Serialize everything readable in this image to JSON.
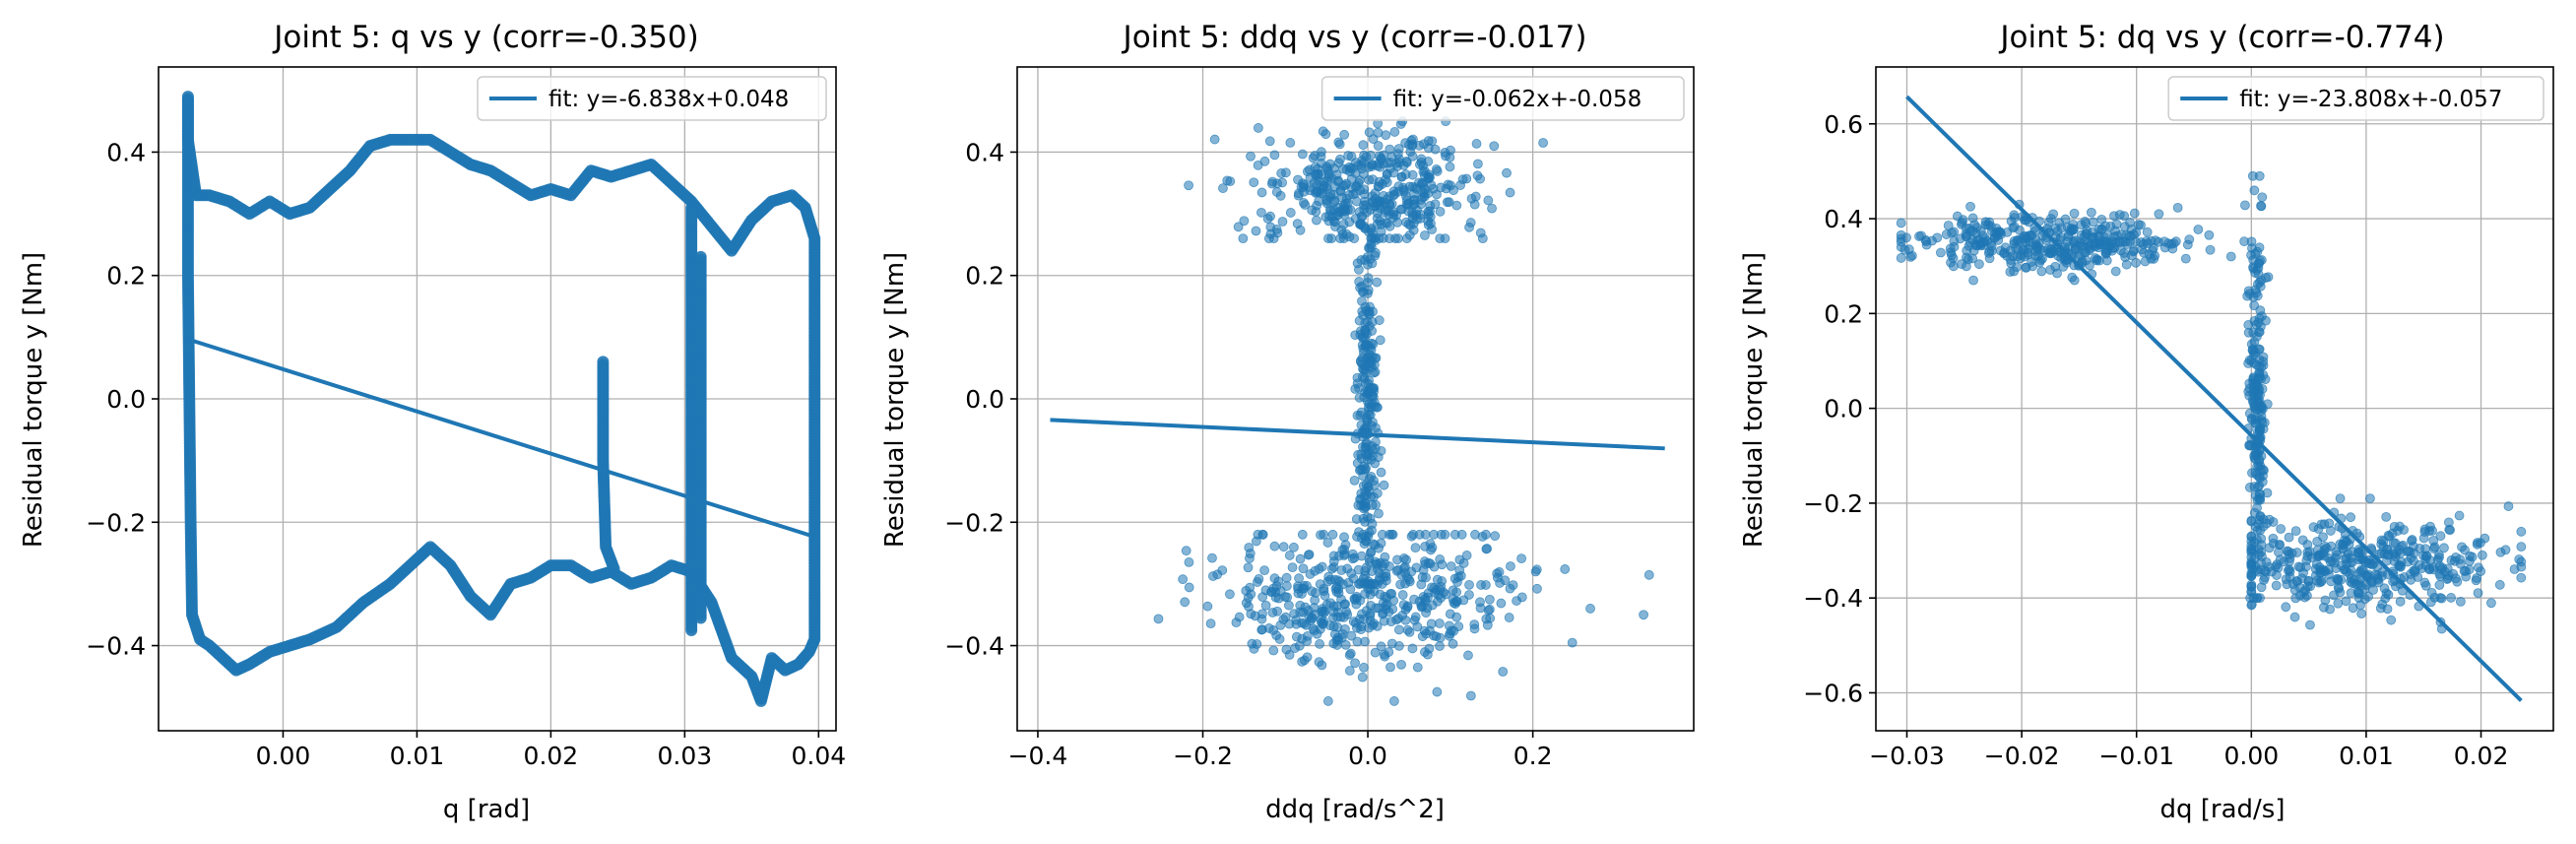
{
  "colors": {
    "series": "#1f77b4",
    "grid": "#b0b0b0",
    "axes": "#000000",
    "legend_edge": "#cccccc"
  },
  "chart_data": [
    {
      "type": "scatter",
      "title": "Joint 5: q vs y (corr=-0.350)",
      "xlabel": "q [rad]",
      "ylabel": "Residual torque y [Nm]",
      "xlim": [
        -0.0093,
        0.0413
      ],
      "ylim": [
        -0.538,
        0.538
      ],
      "xticks": [
        0.0,
        0.01,
        0.02,
        0.03,
        0.04
      ],
      "xtick_labels": [
        "0.00",
        "0.01",
        "0.02",
        "0.03",
        "0.04"
      ],
      "yticks": [
        -0.4,
        -0.2,
        0.0,
        0.2,
        0.4
      ],
      "ytick_labels": [
        "−0.4",
        "−0.2",
        "0.0",
        "0.2",
        "0.4"
      ],
      "grid": true,
      "legend": {
        "location": "upper right",
        "entries": [
          "fit: y=-6.838x+0.048"
        ]
      },
      "point_style": {
        "radius": 6,
        "opacity": 0.9
      },
      "fit": {
        "slope": -6.838,
        "intercept": 0.048,
        "x_range": [
          -0.0071,
          0.0397
        ]
      },
      "series": [
        {
          "kind": "path",
          "points": [
            [
              -0.0071,
              0.49
            ],
            [
              -0.0071,
              0.2
            ],
            [
              -0.007,
              -0.0
            ],
            [
              -0.0069,
              -0.2
            ],
            [
              -0.0068,
              -0.35
            ],
            [
              -0.0062,
              -0.39
            ],
            [
              -0.0055,
              -0.4
            ],
            [
              -0.0045,
              -0.42
            ],
            [
              -0.0035,
              -0.44
            ],
            [
              -0.0025,
              -0.43
            ],
            [
              -0.001,
              -0.41
            ],
            [
              0.0005,
              -0.4
            ],
            [
              0.002,
              -0.39
            ],
            [
              0.004,
              -0.37
            ],
            [
              0.006,
              -0.33
            ],
            [
              0.008,
              -0.3
            ],
            [
              0.0095,
              -0.27
            ],
            [
              0.011,
              -0.24
            ],
            [
              0.0125,
              -0.27
            ],
            [
              0.014,
              -0.32
            ],
            [
              0.0155,
              -0.35
            ],
            [
              0.017,
              -0.3
            ],
            [
              0.0185,
              -0.29
            ],
            [
              0.02,
              -0.27
            ],
            [
              0.0215,
              -0.27
            ],
            [
              0.023,
              -0.29
            ],
            [
              0.0245,
              -0.28
            ],
            [
              0.026,
              -0.3
            ],
            [
              0.0275,
              -0.29
            ],
            [
              0.029,
              -0.27
            ],
            [
              0.0305,
              -0.28
            ],
            [
              0.032,
              -0.33
            ],
            [
              0.0335,
              -0.42
            ],
            [
              0.035,
              -0.45
            ],
            [
              0.0357,
              -0.49
            ],
            [
              0.0365,
              -0.42
            ],
            [
              0.0375,
              -0.44
            ],
            [
              0.0385,
              -0.43
            ],
            [
              0.0393,
              -0.41
            ],
            [
              0.0397,
              -0.39
            ],
            [
              0.0397,
              -0.2
            ],
            [
              0.0397,
              0.0
            ],
            [
              0.0397,
              0.26
            ],
            [
              0.039,
              0.31
            ],
            [
              0.038,
              0.33
            ],
            [
              0.0365,
              0.32
            ],
            [
              0.035,
              0.29
            ],
            [
              0.0335,
              0.24
            ],
            [
              0.032,
              0.28
            ],
            [
              0.0305,
              0.32
            ],
            [
              0.029,
              0.35
            ],
            [
              0.0275,
              0.38
            ],
            [
              0.026,
              0.37
            ],
            [
              0.0245,
              0.36
            ],
            [
              0.023,
              0.37
            ],
            [
              0.0215,
              0.33
            ],
            [
              0.02,
              0.34
            ],
            [
              0.0185,
              0.33
            ],
            [
              0.017,
              0.35
            ],
            [
              0.0155,
              0.37
            ],
            [
              0.014,
              0.38
            ],
            [
              0.0125,
              0.4
            ],
            [
              0.011,
              0.42
            ],
            [
              0.0095,
              0.42
            ],
            [
              0.008,
              0.42
            ],
            [
              0.0065,
              0.41
            ],
            [
              0.005,
              0.37
            ],
            [
              0.0035,
              0.34
            ],
            [
              0.002,
              0.31
            ],
            [
              0.0005,
              0.3
            ],
            [
              -0.001,
              0.32
            ],
            [
              -0.0025,
              0.3
            ],
            [
              -0.004,
              0.32
            ],
            [
              -0.0055,
              0.33
            ],
            [
              -0.0065,
              0.33
            ],
            [
              -0.0071,
              0.42
            ],
            [
              -0.0071,
              0.49
            ]
          ]
        },
        {
          "kind": "path",
          "points": [
            [
              0.0305,
              0.31
            ],
            [
              0.0305,
              0.0
            ],
            [
              0.0305,
              -0.38
            ]
          ]
        },
        {
          "kind": "path",
          "points": [
            [
              0.0312,
              0.23
            ],
            [
              0.0312,
              0.0
            ],
            [
              0.0312,
              -0.36
            ]
          ]
        },
        {
          "kind": "path",
          "points": [
            [
              0.0239,
              0.06
            ],
            [
              0.0239,
              -0.1
            ],
            [
              0.0241,
              -0.24
            ],
            [
              0.0248,
              -0.28
            ]
          ]
        }
      ]
    },
    {
      "type": "scatter",
      "title": "Joint 5: ddq vs y (corr=-0.017)",
      "xlabel": "ddq [rad/s^2]",
      "ylabel": "Residual torque y [Nm]",
      "xlim": [
        -0.425,
        0.395
      ],
      "ylim": [
        -0.538,
        0.538
      ],
      "xticks": [
        -0.4,
        -0.2,
        0.0,
        0.2
      ],
      "xtick_labels": [
        "−0.4",
        "−0.2",
        "0.0",
        "0.2"
      ],
      "yticks": [
        -0.4,
        -0.2,
        0.0,
        0.2,
        0.4
      ],
      "ytick_labels": [
        "−0.4",
        "−0.2",
        "0.0",
        "0.2",
        "0.4"
      ],
      "grid": true,
      "legend": {
        "location": "upper right",
        "entries": [
          "fit: y=-0.062x+-0.058"
        ]
      },
      "point_style": {
        "radius": 4.5,
        "opacity": 0.55
      },
      "fit": {
        "slope": -0.062,
        "intercept": -0.058,
        "x_range": [
          -0.385,
          0.36
        ]
      },
      "series": [
        {
          "kind": "clusters",
          "clusters": [
            {
              "xc": 0.0,
              "xs": 0.07,
              "yc": 0.34,
              "ys": 0.045,
              "n": 420,
              "xmin": -0.39,
              "xmax": 0.35,
              "ymin": 0.26,
              "ymax": 0.45
            },
            {
              "xc": 0.0,
              "xs": 0.09,
              "yc": -0.32,
              "ys": 0.055,
              "n": 480,
              "xmin": -0.37,
              "xmax": 0.36,
              "ymin": -0.49,
              "ymax": -0.22
            },
            {
              "xc": 0.0,
              "xs": 0.007,
              "yc": 0.0,
              "ys": 0.17,
              "n": 260,
              "xmin": -0.04,
              "xmax": 0.05,
              "ymin": -0.3,
              "ymax": 0.32
            }
          ]
        }
      ]
    },
    {
      "type": "scatter",
      "title": "Joint 5: dq vs y (corr=-0.774)",
      "xlabel": "dq [rad/s]",
      "ylabel": "Residual torque y [Nm]",
      "xlim": [
        -0.0327,
        0.0263
      ],
      "ylim": [
        -0.68,
        0.72
      ],
      "xticks": [
        -0.03,
        -0.02,
        -0.01,
        0.0,
        0.01,
        0.02
      ],
      "xtick_labels": [
        "−0.03",
        "−0.02",
        "−0.01",
        "0.00",
        "0.01",
        "0.02"
      ],
      "yticks": [
        -0.6,
        -0.4,
        -0.2,
        0.0,
        0.2,
        0.4,
        0.6
      ],
      "ytick_labels": [
        "−0.6",
        "−0.4",
        "−0.2",
        "0.0",
        "0.2",
        "0.4",
        "0.6"
      ],
      "grid": true,
      "legend": {
        "location": "upper right",
        "entries": [
          "fit: y=-23.808x+-0.057"
        ]
      },
      "point_style": {
        "radius": 4.5,
        "opacity": 0.55
      },
      "fit": {
        "slope": -23.808,
        "intercept": -0.057,
        "x_range": [
          -0.03,
          0.0235
        ]
      },
      "series": [
        {
          "kind": "clusters",
          "clusters": [
            {
              "xc": -0.017,
              "xs": 0.006,
              "yc": 0.35,
              "ys": 0.03,
              "n": 380,
              "xmin": -0.0305,
              "xmax": 0.0,
              "ymin": 0.27,
              "ymax": 0.43
            },
            {
              "xc": 0.009,
              "xs": 0.006,
              "yc": -0.33,
              "ys": 0.045,
              "n": 420,
              "xmin": 0.0,
              "xmax": 0.0235,
              "ymin": -0.48,
              "ymax": -0.19
            },
            {
              "xc": 0.0005,
              "xs": 0.0004,
              "yc": 0.0,
              "ys": 0.2,
              "n": 220,
              "xmin": -0.0008,
              "xmax": 0.002,
              "ymin": -0.4,
              "ymax": 0.49
            }
          ]
        }
      ]
    }
  ]
}
